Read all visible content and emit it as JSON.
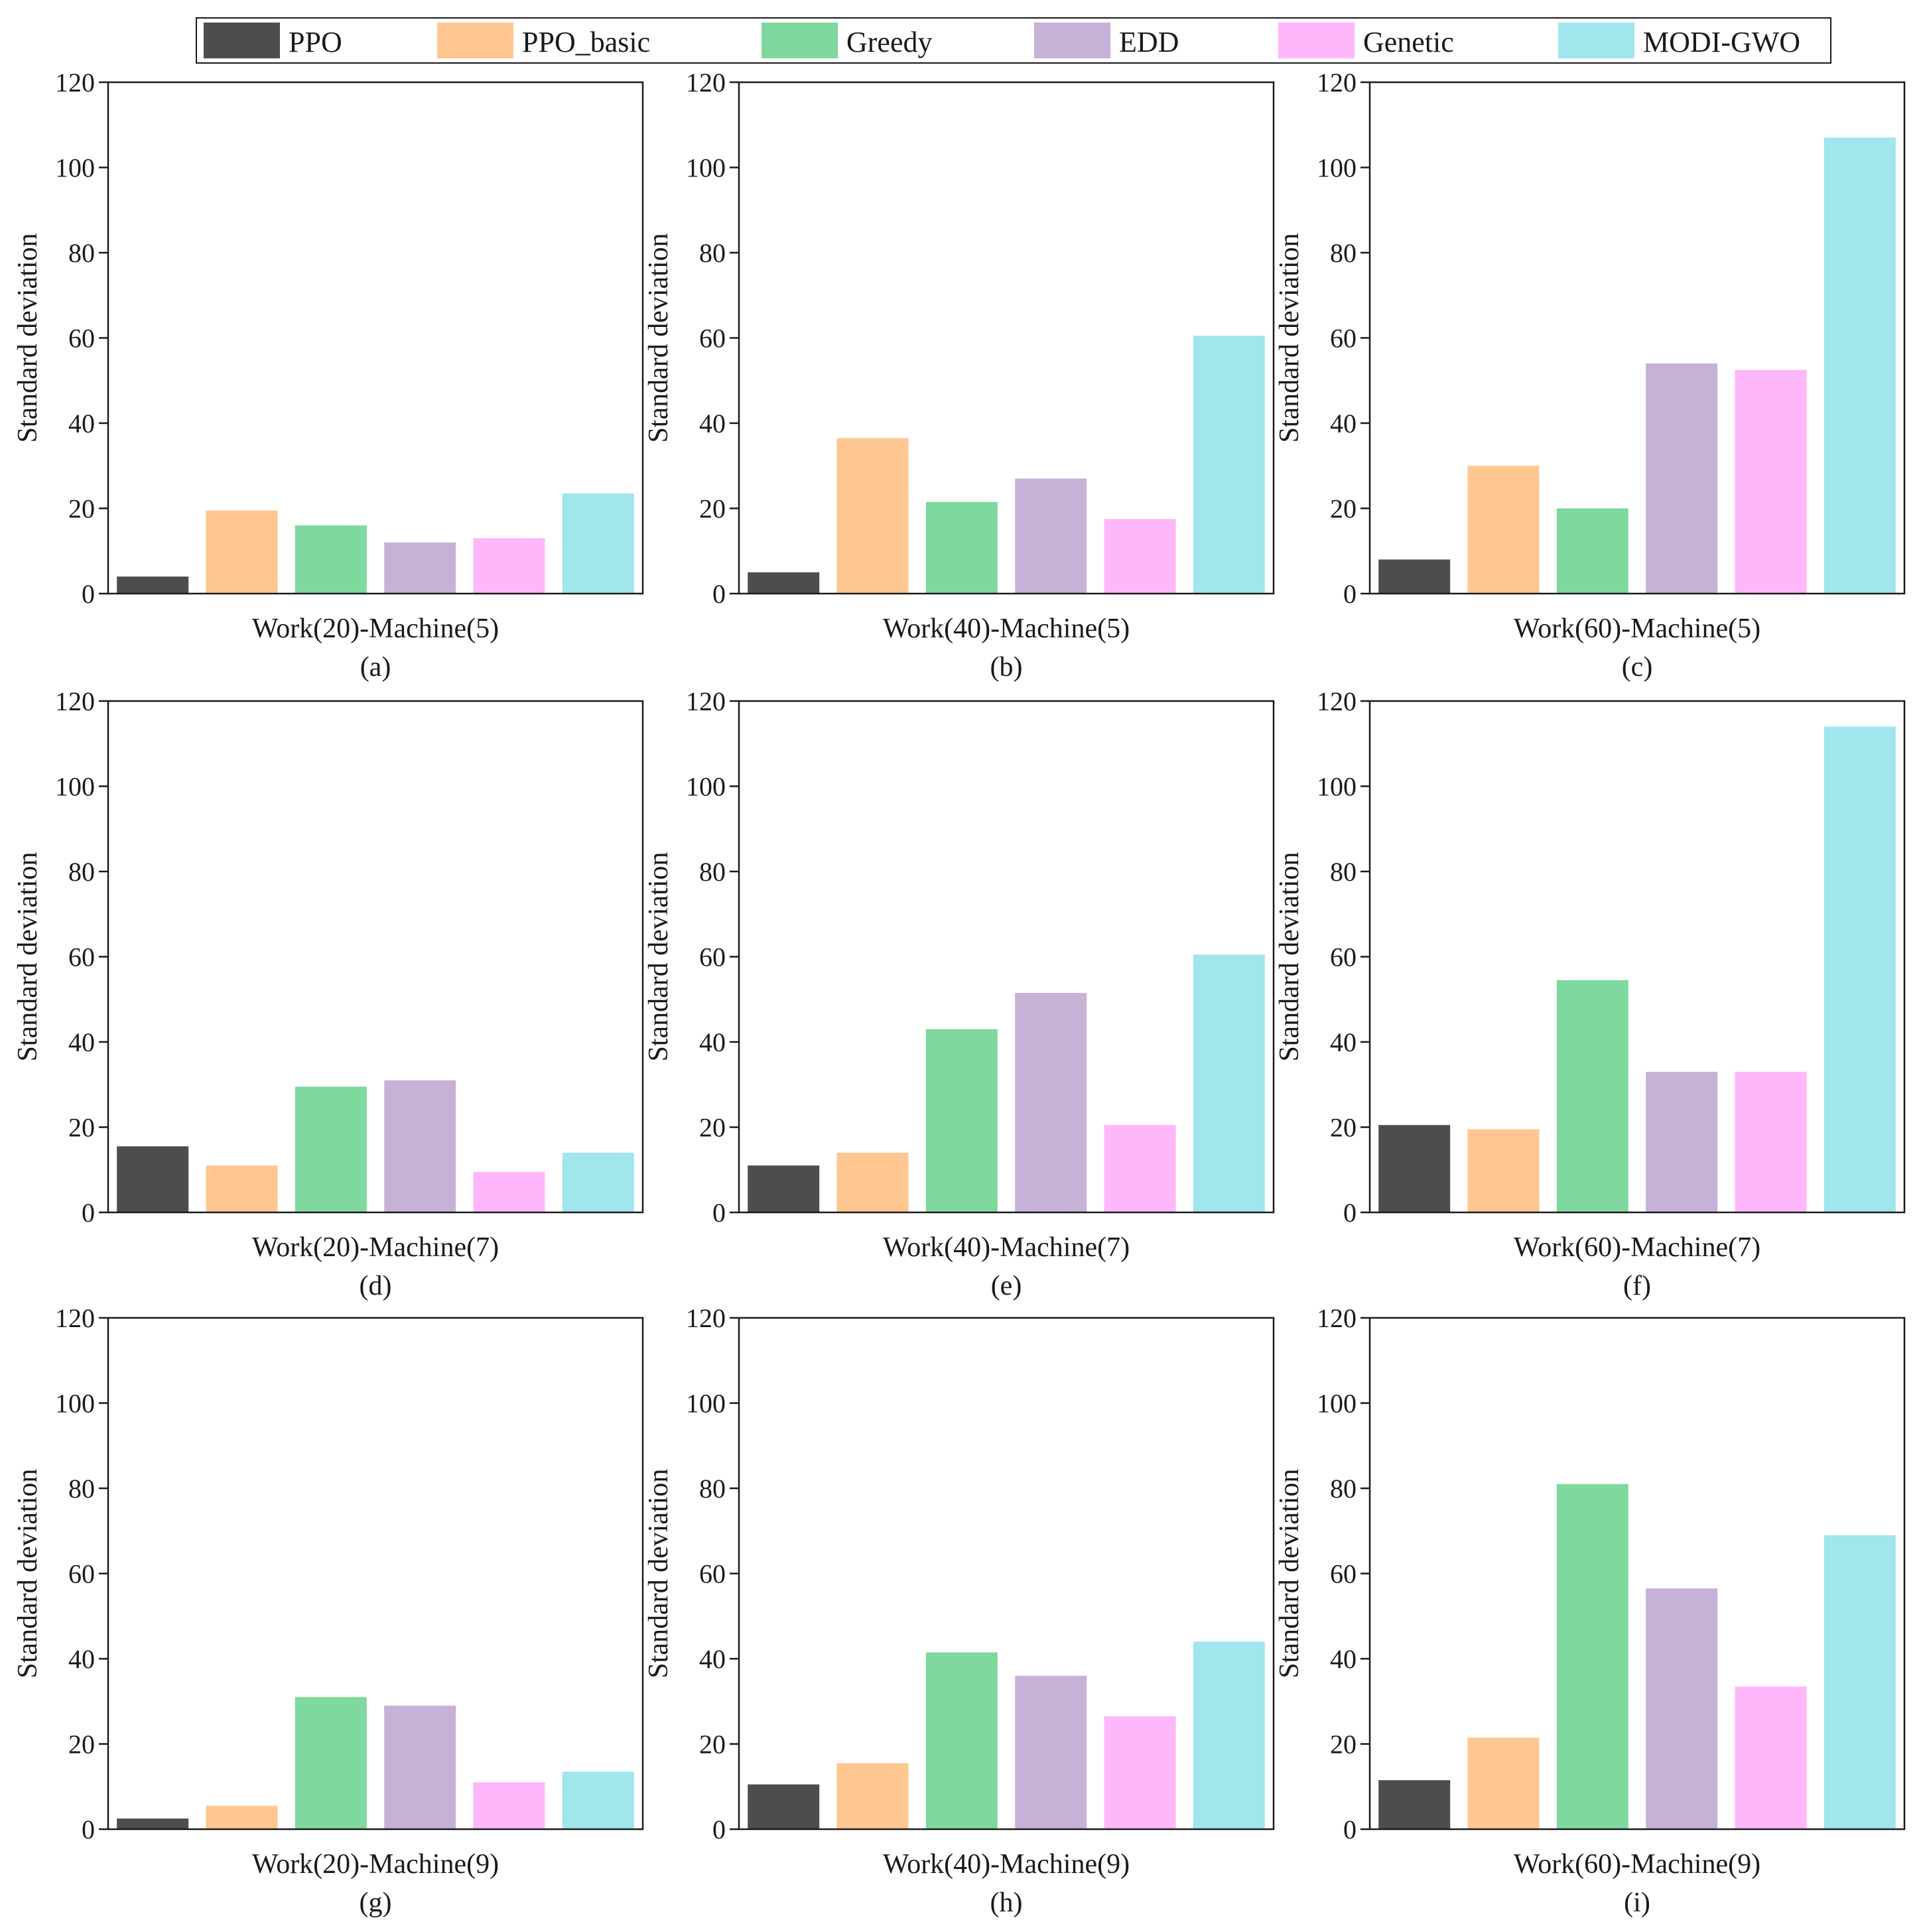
{
  "chart_data": {
    "type": "bar",
    "series_order": [
      "PPO",
      "PPO_basic",
      "Greedy",
      "EDD",
      "Genetic",
      "MODI-GWO"
    ],
    "colors": {
      "PPO": "#4d4d4d",
      "PPO_basic": "#fec792",
      "Greedy": "#7fd89d",
      "EDD": "#c8b1d6",
      "Genetic": "#feb7fa",
      "MODI-GWO": "#a1e5ed"
    },
    "legend": {
      "position": "top",
      "entries": [
        "PPO",
        "PPO_basic",
        "Greedy",
        "EDD",
        "Genetic",
        "MODI-GWO"
      ]
    },
    "ylabel": "Standard deviation",
    "ylim": [
      0,
      120
    ],
    "yticks": [
      0,
      20,
      40,
      60,
      80,
      100,
      120
    ],
    "panels": [
      {
        "xlabel": "Work(20)-Machine(5)",
        "caption": "(a)",
        "values": [
          4,
          19.5,
          16,
          12,
          13,
          23.5
        ]
      },
      {
        "xlabel": "Work(40)-Machine(5)",
        "caption": "(b)",
        "values": [
          5,
          36.5,
          21.5,
          27,
          17.5,
          60.5
        ]
      },
      {
        "xlabel": "Work(60)-Machine(5)",
        "caption": "(c)",
        "values": [
          8,
          30,
          20,
          54,
          52.5,
          107
        ]
      },
      {
        "xlabel": "Work(20)-Machine(7)",
        "caption": "(d)",
        "values": [
          15.5,
          11,
          29.5,
          31,
          9.5,
          14
        ]
      },
      {
        "xlabel": "Work(40)-Machine(7)",
        "caption": "(e)",
        "values": [
          11,
          14,
          43,
          51.5,
          20.5,
          60.5
        ]
      },
      {
        "xlabel": "Work(60)-Machine(7)",
        "caption": "(f)",
        "values": [
          20.5,
          19.5,
          54.5,
          33,
          33,
          114
        ]
      },
      {
        "xlabel": "Work(20)-Machine(9)",
        "caption": "(g)",
        "values": [
          2.5,
          5.5,
          31,
          29,
          11,
          13.5
        ]
      },
      {
        "xlabel": "Work(40)-Machine(9)",
        "caption": "(h)",
        "values": [
          10.5,
          15.5,
          41.5,
          36,
          26.5,
          44
        ]
      },
      {
        "xlabel": "Work(60)-Machine(9)",
        "caption": "(i)",
        "values": [
          11.5,
          21.5,
          81,
          56.5,
          33.5,
          69
        ]
      }
    ]
  }
}
